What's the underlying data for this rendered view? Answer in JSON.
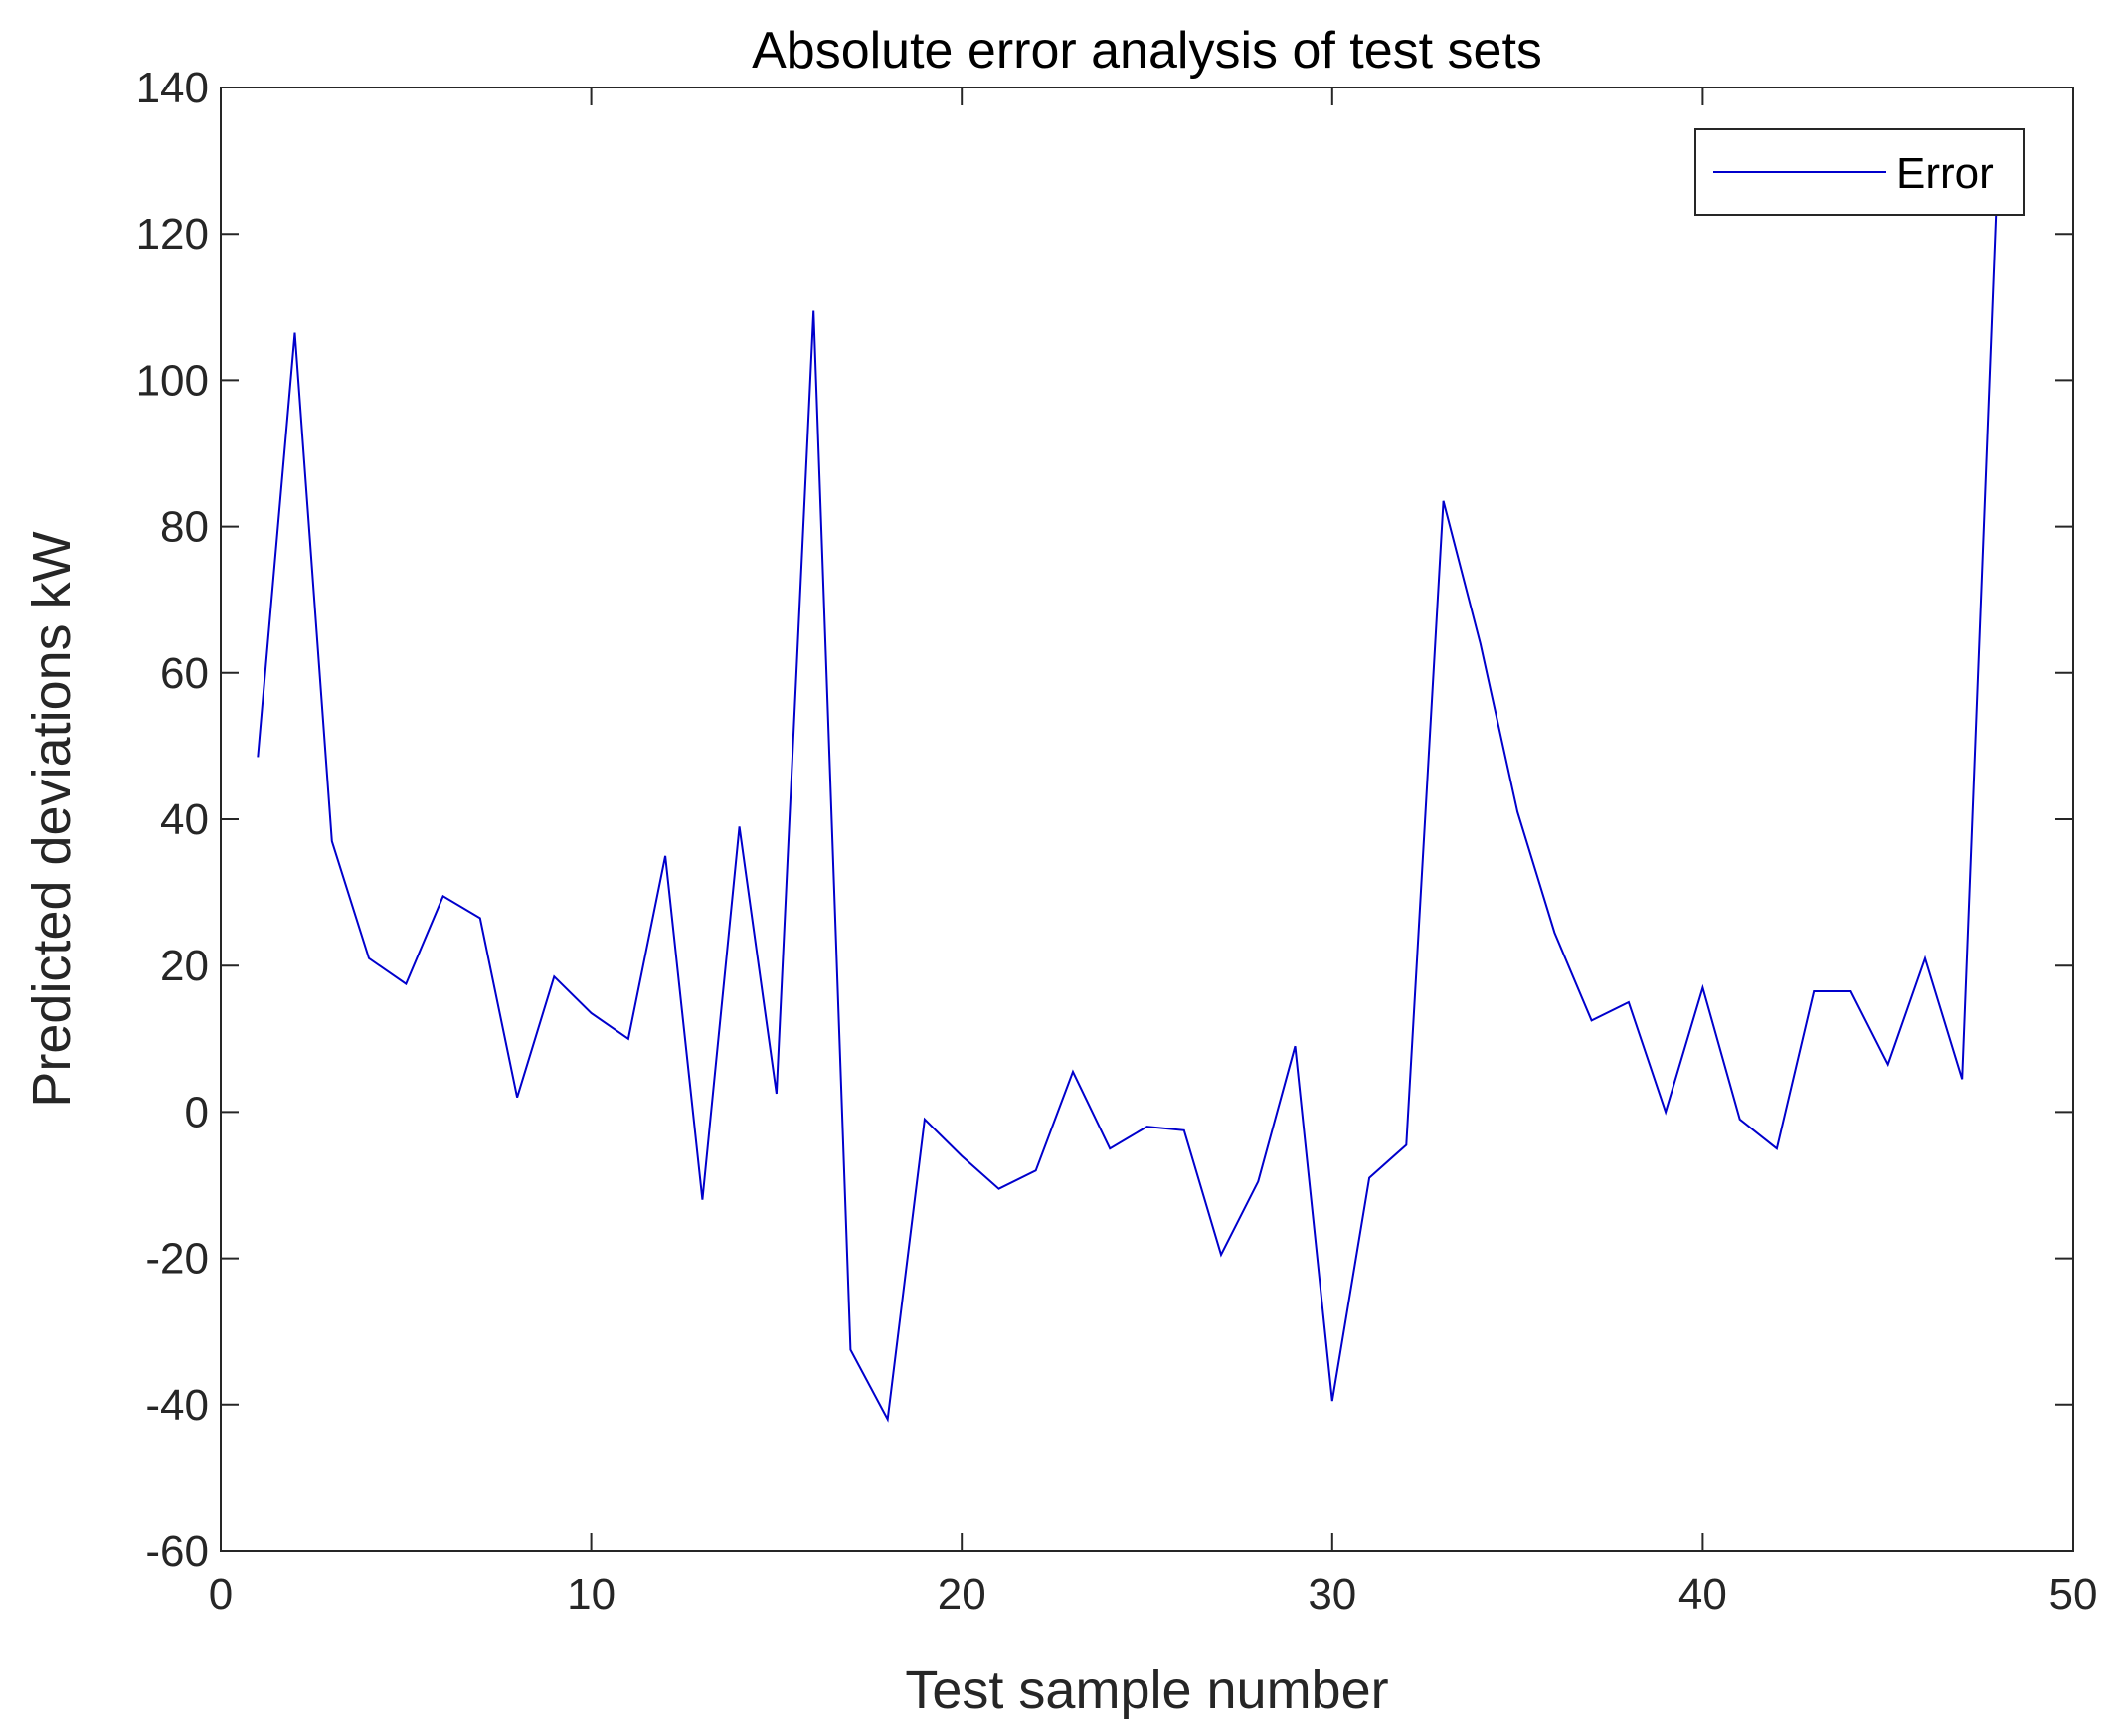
{
  "chart_data": {
    "type": "line",
    "title": "Absolute error analysis of test sets",
    "xlabel": "Test sample number",
    "ylabel": "Predicted deviations kW",
    "xlim": [
      0,
      50
    ],
    "ylim": [
      -60,
      140
    ],
    "xticks": [
      0,
      10,
      20,
      30,
      40,
      50
    ],
    "yticks": [
      -60,
      -40,
      -20,
      0,
      20,
      40,
      60,
      80,
      100,
      120,
      140
    ],
    "grid": false,
    "legend_position": "top-right",
    "series": [
      {
        "name": "Error",
        "color": "#0000cc",
        "x": [
          1,
          2,
          3,
          4,
          5,
          6,
          7,
          8,
          9,
          10,
          11,
          12,
          13,
          14,
          15,
          16,
          17,
          18,
          19,
          20,
          21,
          22,
          23,
          24,
          25,
          26,
          27,
          28,
          29,
          30,
          31,
          32,
          33,
          34,
          35,
          36,
          37,
          38,
          39,
          40,
          41,
          42,
          43,
          44,
          45,
          46,
          47,
          48
        ],
        "y": [
          48.5,
          106.5,
          37,
          21,
          17.5,
          29.5,
          26.5,
          2,
          18.5,
          13.5,
          10,
          35,
          -12,
          39,
          2.5,
          109.5,
          -32.5,
          -42,
          -1,
          -6,
          -10.5,
          -8,
          5.5,
          -5,
          -2,
          -2.5,
          -19.5,
          -9.5,
          9,
          -39.5,
          -9,
          -4.5,
          83.5,
          64,
          41,
          24.5,
          12.5,
          15,
          0,
          17,
          -1,
          -5,
          16.5,
          16.5,
          6.5,
          21,
          4.5,
          134
        ]
      }
    ]
  }
}
